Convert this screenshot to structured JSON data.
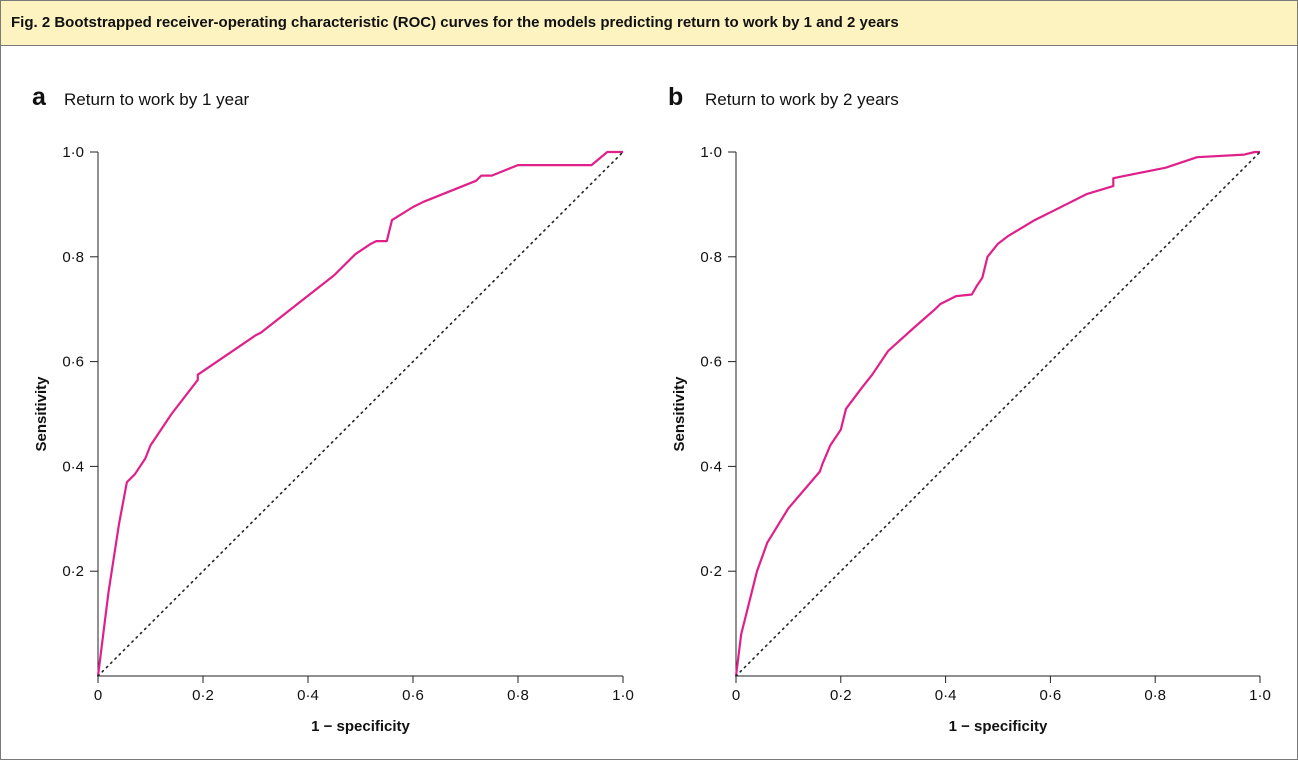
{
  "caption": "Fig. 2 Bootstrapped receiver-operating characteristic (ROC) curves for the models predicting return to work by 1 and 2 years",
  "colors": {
    "curve": "#e0208a",
    "diagonal": "#222222",
    "axis": "#222222",
    "caption_bg": "#fdf3c0"
  },
  "chart_data": [
    {
      "type": "line",
      "panel": "a",
      "title": "Return to work by 1 year",
      "xlabel": "1 − specificity",
      "ylabel": "Sensitivity",
      "xlim": [
        0,
        1
      ],
      "ylim": [
        0,
        1
      ],
      "x_ticks": [
        "0",
        "0·2",
        "0·4",
        "0·6",
        "0·8",
        "1·0"
      ],
      "y_ticks": [
        "0·2",
        "0·4",
        "0·6",
        "0·8",
        "1·0"
      ],
      "grid": false,
      "series": [
        {
          "x": [
            0,
            0.02,
            0.04,
            0.055,
            0.07,
            0.09,
            0.1,
            0.14,
            0.19,
            0.19,
            0.3,
            0.31,
            0.45,
            0.49,
            0.52,
            0.53,
            0.55,
            0.56,
            0.6,
            0.62,
            0.72,
            0.73,
            0.75,
            0.8,
            0.94,
            0.97,
            0.98,
            1.0
          ],
          "y": [
            0,
            0.16,
            0.29,
            0.37,
            0.385,
            0.415,
            0.44,
            0.5,
            0.565,
            0.575,
            0.65,
            0.655,
            0.765,
            0.805,
            0.825,
            0.83,
            0.83,
            0.87,
            0.895,
            0.905,
            0.945,
            0.955,
            0.955,
            0.975,
            0.975,
            1.0,
            1.0,
            1.0
          ]
        },
        {
          "x": [
            0,
            1
          ],
          "y": [
            0,
            1
          ],
          "style": "dotted"
        }
      ]
    },
    {
      "type": "line",
      "panel": "b",
      "title": "Return to work by 2 years",
      "xlabel": "1 − specificity",
      "ylabel": "Sensitivity",
      "xlim": [
        0,
        1
      ],
      "ylim": [
        0,
        1
      ],
      "x_ticks": [
        "0",
        "0·2",
        "0·4",
        "0·6",
        "0·8",
        "1·0"
      ],
      "y_ticks": [
        "0·2",
        "0·4",
        "0·6",
        "0·8",
        "1·0"
      ],
      "grid": false,
      "series": [
        {
          "x": [
            0,
            0.01,
            0.02,
            0.04,
            0.06,
            0.1,
            0.16,
            0.165,
            0.18,
            0.2,
            0.21,
            0.24,
            0.26,
            0.29,
            0.34,
            0.38,
            0.39,
            0.42,
            0.45,
            0.46,
            0.47,
            0.48,
            0.5,
            0.52,
            0.57,
            0.59,
            0.6,
            0.67,
            0.72,
            0.72,
            0.82,
            0.88,
            0.97,
            0.99,
            1.0
          ],
          "y": [
            0,
            0.08,
            0.12,
            0.2,
            0.255,
            0.32,
            0.39,
            0.405,
            0.44,
            0.47,
            0.51,
            0.55,
            0.575,
            0.62,
            0.665,
            0.7,
            0.71,
            0.725,
            0.728,
            0.745,
            0.76,
            0.8,
            0.825,
            0.84,
            0.87,
            0.88,
            0.885,
            0.92,
            0.935,
            0.95,
            0.97,
            0.99,
            0.995,
            1.0,
            1.0
          ]
        },
        {
          "x": [
            0,
            1
          ],
          "y": [
            0,
            1
          ],
          "style": "dotted"
        }
      ]
    }
  ]
}
